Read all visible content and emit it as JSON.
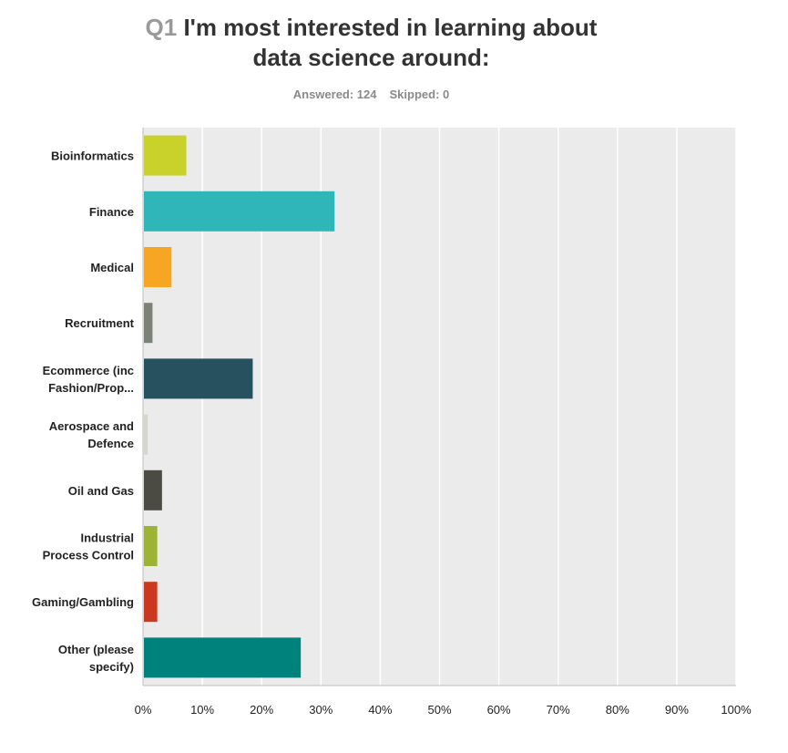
{
  "header": {
    "question_number": "Q1",
    "title_line1": "I'm most interested in learning about",
    "title_line2": "data science around:",
    "answered": "Answered: 124",
    "skipped": "Skipped: 0"
  },
  "chart_data": {
    "type": "bar",
    "orientation": "horizontal",
    "categories": [
      [
        "Bioinformatics"
      ],
      [
        "Finance"
      ],
      [
        "Medical"
      ],
      [
        "Recruitment"
      ],
      [
        "Ecommerce (inc",
        "Fashion/Prop..."
      ],
      [
        "Aerospace and",
        "Defence"
      ],
      [
        "Oil and Gas"
      ],
      [
        "Industrial",
        "Process Control"
      ],
      [
        "Gaming/Gambling"
      ],
      [
        "Other (please",
        "specify)"
      ]
    ],
    "values": [
      7.3,
      32.3,
      4.8,
      1.6,
      18.5,
      0.8,
      3.2,
      2.4,
      2.4,
      26.6
    ],
    "colors": [
      "#c9d22a",
      "#2fb6b8",
      "#f6a623",
      "#7d8278",
      "#285160",
      "#d6d6ca",
      "#4c4b43",
      "#9bb436",
      "#c9381f",
      "#00827c"
    ],
    "x_ticks": [
      "0%",
      "10%",
      "20%",
      "30%",
      "40%",
      "50%",
      "60%",
      "70%",
      "80%",
      "90%",
      "100%"
    ],
    "xlim": [
      0,
      100
    ],
    "grid": true,
    "background_color": "#ebebeb",
    "grid_color": "#ffffff"
  }
}
